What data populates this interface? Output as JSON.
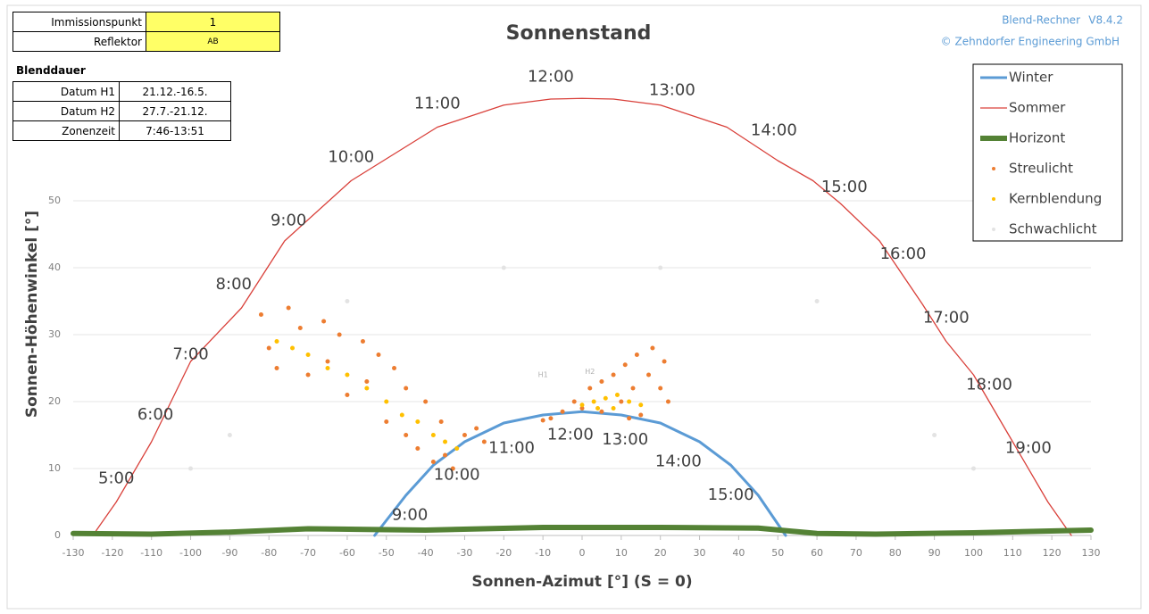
{
  "info": {
    "immission_label": "Immissionspunkt",
    "immission_value": "1",
    "reflector_label": "Reflektor",
    "reflector_value": "AB",
    "duration_title": "Blenddauer",
    "rows": [
      [
        "Datum H1",
        "21.12.-16.5."
      ],
      [
        "Datum H2",
        "27.7.-21.12."
      ],
      [
        "Zonenzeit",
        "7:46-13:51"
      ]
    ],
    "software": "Blend-Rechner",
    "version": "V8.4.2",
    "copyright": "© Zehndorfer Engineering GmbH"
  },
  "chart_data": {
    "type": "line",
    "title": "Sonnenstand",
    "x_label": "Sonnen-Azimut [°] (S = 0)",
    "y_label": "Sonnen-Höhenwinkel [°]",
    "xlim": [
      -130,
      130
    ],
    "ylim": [
      0,
      66
    ],
    "xticks": [
      -130,
      -120,
      -110,
      -100,
      -90,
      -80,
      -70,
      -60,
      -50,
      -40,
      -30,
      -20,
      -10,
      0,
      10,
      20,
      30,
      40,
      50,
      60,
      70,
      80,
      90,
      100,
      110,
      120,
      130
    ],
    "yticks": [
      0,
      10,
      20,
      30,
      40,
      50
    ],
    "grid": true,
    "legend": "top-right",
    "series": [
      {
        "name": "Winter",
        "kind": "line",
        "color": "#5b9bd5",
        "width": 3,
        "x": [
          -53,
          -45,
          -38,
          -30,
          -20,
          -10,
          0,
          10,
          20,
          30,
          38,
          45,
          52
        ],
        "values": [
          0,
          6,
          10.5,
          14,
          16.8,
          18,
          18.5,
          18,
          16.8,
          14,
          10.5,
          6,
          0
        ]
      },
      {
        "name": "Sommer",
        "kind": "line",
        "color": "#d9403a",
        "width": 1.3,
        "x": [
          -125,
          -119,
          -110,
          -100,
          -87,
          -76,
          -59,
          -37,
          -20,
          -8,
          0,
          8,
          20,
          37,
          50,
          59,
          66,
          76,
          87,
          93,
          100,
          110,
          119,
          125
        ],
        "values": [
          0,
          5,
          14,
          26,
          34,
          44,
          53,
          61,
          64.3,
          65.2,
          65.3,
          65.2,
          64.3,
          61,
          56,
          53,
          49.6,
          44,
          34.5,
          29,
          24,
          14,
          5,
          0
        ]
      },
      {
        "name": "Horizont",
        "kind": "line",
        "color": "#548235",
        "width": 6,
        "x": [
          -130,
          -110,
          -90,
          -70,
          -55,
          -40,
          -10,
          20,
          45,
          60,
          75,
          100,
          130
        ],
        "values": [
          0.3,
          0.2,
          0.5,
          1,
          0.9,
          0.8,
          1.2,
          1.2,
          1.1,
          0.3,
          0.2,
          0.4,
          0.8
        ]
      },
      {
        "name": "Streulicht",
        "kind": "scatter",
        "color": "#ed7d31",
        "x": [
          -82,
          -80,
          -78,
          -75,
          -72,
          -70,
          -66,
          -62,
          -60,
          -56,
          -52,
          -50,
          -48,
          -45,
          -42,
          -40,
          -38,
          -36,
          -33,
          -30,
          -27,
          -25,
          -65,
          -55,
          -45,
          -35,
          -8,
          -5,
          -2,
          0,
          2,
          5,
          5,
          8,
          10,
          11,
          13,
          14,
          15,
          17,
          18,
          20,
          21,
          22,
          12,
          -10
        ],
        "values": [
          33,
          28,
          25,
          34,
          31,
          24,
          32,
          30,
          21,
          29,
          27,
          17,
          25,
          22,
          13,
          20,
          11,
          17,
          10,
          15,
          16,
          14,
          26,
          23,
          15,
          12,
          17.5,
          18.5,
          20,
          19,
          22,
          23,
          18.5,
          24,
          20,
          25.5,
          22,
          27,
          18,
          24,
          28,
          22,
          26,
          20,
          17.5,
          17.2
        ]
      },
      {
        "name": "Kernblendung",
        "kind": "scatter",
        "color": "#ffc000",
        "x": [
          -78,
          -74,
          -70,
          -65,
          -60,
          -55,
          -50,
          -46,
          -42,
          -38,
          -35,
          -32,
          0,
          3,
          6,
          9,
          12,
          15,
          8,
          4
        ],
        "values": [
          29,
          28,
          27,
          25,
          24,
          22,
          20,
          18,
          17,
          15,
          14,
          13,
          19.5,
          20,
          20.5,
          21,
          20,
          19.5,
          19,
          19
        ]
      },
      {
        "name": "Schwachlicht",
        "kind": "scatter",
        "color": "#e3e3e3",
        "x": [
          -100,
          -90,
          -60,
          -20,
          20,
          60,
          90,
          100
        ],
        "values": [
          10,
          15,
          35,
          40,
          40,
          35,
          15,
          10
        ]
      }
    ],
    "annotations": [
      {
        "text": "5:00",
        "x": -119,
        "y": 8.5
      },
      {
        "text": "6:00",
        "x": -109,
        "y": 18
      },
      {
        "text": "7:00",
        "x": -100,
        "y": 27
      },
      {
        "text": "8:00",
        "x": -89,
        "y": 37.5
      },
      {
        "text": "9:00",
        "x": -75,
        "y": 47
      },
      {
        "text": "10:00",
        "x": -59,
        "y": 56.5
      },
      {
        "text": "11:00",
        "x": -37,
        "y": 64.5
      },
      {
        "text": "12:00",
        "x": -8,
        "y": 68.5
      },
      {
        "text": "13:00",
        "x": 23,
        "y": 66.5
      },
      {
        "text": "14:00",
        "x": 49,
        "y": 60.5
      },
      {
        "text": "15:00",
        "x": 67,
        "y": 52
      },
      {
        "text": "16:00",
        "x": 82,
        "y": 42
      },
      {
        "text": "17:00",
        "x": 93,
        "y": 32.5
      },
      {
        "text": "18:00",
        "x": 104,
        "y": 22.5
      },
      {
        "text": "19:00",
        "x": 114,
        "y": 13
      },
      {
        "text": "9:00",
        "x": -44,
        "y": 3
      },
      {
        "text": "10:00",
        "x": -32,
        "y": 9
      },
      {
        "text": "11:00",
        "x": -18,
        "y": 13
      },
      {
        "text": "12:00",
        "x": -3,
        "y": 15
      },
      {
        "text": "13:00",
        "x": 11,
        "y": 14.3
      },
      {
        "text": "14:00",
        "x": 24.6,
        "y": 11
      },
      {
        "text": "15:00",
        "x": 38,
        "y": 6
      }
    ],
    "markers": [
      {
        "text": "H1",
        "x": -10,
        "y": 24
      },
      {
        "text": "H2",
        "x": 2,
        "y": 24.5
      }
    ]
  }
}
